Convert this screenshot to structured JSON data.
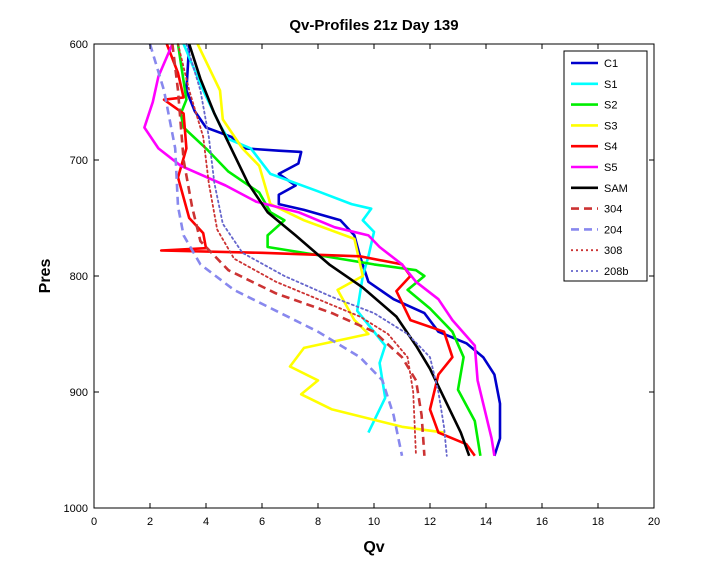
{
  "chart_data": {
    "type": "line",
    "title": "Qv-Profiles 21z Day 139",
    "xlabel": "Qv",
    "ylabel": "Pres",
    "xlim": [
      0,
      20
    ],
    "ylim": [
      600,
      1000
    ],
    "y_reversed": true,
    "xticks": [
      0,
      2,
      4,
      6,
      8,
      10,
      12,
      14,
      16,
      18,
      20
    ],
    "yticks": [
      600,
      700,
      800,
      900,
      1000
    ],
    "grid": false,
    "legend_position": "top-right",
    "series": [
      {
        "name": "C1",
        "color": "#0000cc",
        "dash": "solid",
        "points": [
          [
            3.4,
            600
          ],
          [
            3.3,
            640
          ],
          [
            3.6,
            658
          ],
          [
            4.0,
            672
          ],
          [
            4.9,
            680
          ],
          [
            5.4,
            690
          ],
          [
            6.6,
            692
          ],
          [
            7.4,
            693
          ],
          [
            7.3,
            703
          ],
          [
            6.6,
            712
          ],
          [
            7.2,
            722
          ],
          [
            6.6,
            730
          ],
          [
            6.6,
            738
          ],
          [
            7.5,
            743
          ],
          [
            8.8,
            752
          ],
          [
            9.3,
            765
          ],
          [
            9.5,
            783
          ],
          [
            9.8,
            805
          ],
          [
            10.7,
            820
          ],
          [
            11.8,
            832
          ],
          [
            12.3,
            848
          ],
          [
            13.3,
            858
          ],
          [
            13.9,
            870
          ],
          [
            14.3,
            885
          ],
          [
            14.5,
            910
          ],
          [
            14.5,
            940
          ],
          [
            14.3,
            955
          ]
        ]
      },
      {
        "name": "S1",
        "color": "#00ffff",
        "dash": "solid",
        "points": [
          [
            3.2,
            600
          ],
          [
            3.9,
            640
          ],
          [
            4.5,
            670
          ],
          [
            4.8,
            682
          ],
          [
            5.6,
            690
          ],
          [
            6.3,
            712
          ],
          [
            8.0,
            727
          ],
          [
            9.2,
            738
          ],
          [
            9.9,
            742
          ],
          [
            9.6,
            752
          ],
          [
            10.0,
            762
          ],
          [
            9.8,
            783
          ],
          [
            9.6,
            800
          ],
          [
            9.4,
            830
          ],
          [
            10.4,
            860
          ],
          [
            10.2,
            875
          ],
          [
            10.4,
            905
          ],
          [
            10.0,
            925
          ],
          [
            9.8,
            935
          ]
        ]
      },
      {
        "name": "S2",
        "color": "#00ee00",
        "dash": "solid",
        "points": [
          [
            3.0,
            600
          ],
          [
            3.3,
            648
          ],
          [
            3.1,
            660
          ],
          [
            3.2,
            672
          ],
          [
            4.0,
            690
          ],
          [
            4.8,
            710
          ],
          [
            5.9,
            728
          ],
          [
            6.3,
            745
          ],
          [
            6.8,
            752
          ],
          [
            6.2,
            765
          ],
          [
            6.2,
            775
          ],
          [
            8.0,
            782
          ],
          [
            10.0,
            790
          ],
          [
            11.5,
            795
          ],
          [
            11.8,
            800
          ],
          [
            11.2,
            812
          ],
          [
            12.0,
            828
          ],
          [
            12.8,
            848
          ],
          [
            13.2,
            870
          ],
          [
            13.0,
            898
          ],
          [
            13.6,
            925
          ],
          [
            13.8,
            955
          ]
        ]
      },
      {
        "name": "S3",
        "color": "#ffff00",
        "dash": "solid",
        "points": [
          [
            3.7,
            600
          ],
          [
            4.5,
            640
          ],
          [
            4.6,
            665
          ],
          [
            5.3,
            690
          ],
          [
            5.9,
            705
          ],
          [
            6.3,
            738
          ],
          [
            7.5,
            752
          ],
          [
            9.3,
            768
          ],
          [
            9.6,
            800
          ],
          [
            8.7,
            812
          ],
          [
            9.3,
            838
          ],
          [
            9.8,
            850
          ],
          [
            7.5,
            862
          ],
          [
            7.0,
            878
          ],
          [
            8.0,
            890
          ],
          [
            7.4,
            902
          ],
          [
            8.5,
            915
          ],
          [
            11.0,
            930
          ],
          [
            12.5,
            935
          ]
        ]
      },
      {
        "name": "S4",
        "color": "#ff0000",
        "dash": "solid",
        "points": [
          [
            2.6,
            600
          ],
          [
            3.0,
            625
          ],
          [
            3.2,
            646
          ],
          [
            2.5,
            648
          ],
          [
            3.2,
            660
          ],
          [
            3.3,
            690
          ],
          [
            3.0,
            715
          ],
          [
            3.4,
            750
          ],
          [
            3.9,
            763
          ],
          [
            4.0,
            776
          ],
          [
            2.4,
            778
          ],
          [
            6.0,
            780
          ],
          [
            9.5,
            783
          ],
          [
            11.0,
            790
          ],
          [
            11.3,
            800
          ],
          [
            10.8,
            813
          ],
          [
            11.3,
            838
          ],
          [
            12.5,
            848
          ],
          [
            12.8,
            870
          ],
          [
            12.3,
            885
          ],
          [
            12.0,
            915
          ],
          [
            12.3,
            935
          ],
          [
            13.3,
            945
          ],
          [
            13.6,
            955
          ]
        ]
      },
      {
        "name": "S5",
        "color": "#ff00ff",
        "dash": "solid",
        "points": [
          [
            2.8,
            600
          ],
          [
            2.3,
            628
          ],
          [
            2.1,
            650
          ],
          [
            1.8,
            672
          ],
          [
            2.3,
            690
          ],
          [
            3.1,
            705
          ],
          [
            4.7,
            722
          ],
          [
            5.8,
            736
          ],
          [
            7.3,
            745
          ],
          [
            8.6,
            758
          ],
          [
            9.8,
            765
          ],
          [
            10.2,
            775
          ],
          [
            11.0,
            790
          ],
          [
            11.5,
            805
          ],
          [
            12.3,
            820
          ],
          [
            12.8,
            838
          ],
          [
            13.6,
            860
          ],
          [
            13.7,
            890
          ],
          [
            13.9,
            910
          ],
          [
            14.2,
            940
          ],
          [
            14.3,
            955
          ]
        ]
      },
      {
        "name": "SAM",
        "color": "#000000",
        "dash": "solid",
        "points": [
          [
            3.4,
            600
          ],
          [
            3.8,
            630
          ],
          [
            4.3,
            660
          ],
          [
            4.9,
            690
          ],
          [
            5.5,
            720
          ],
          [
            6.2,
            745
          ],
          [
            7.2,
            765
          ],
          [
            8.4,
            790
          ],
          [
            9.6,
            810
          ],
          [
            10.8,
            835
          ],
          [
            11.5,
            860
          ],
          [
            12.0,
            880
          ],
          [
            12.6,
            910
          ],
          [
            13.1,
            935
          ],
          [
            13.4,
            955
          ]
        ]
      },
      {
        "name": "304",
        "color": "#cc3333",
        "dash": "dash",
        "points": [
          [
            2.8,
            600
          ],
          [
            3.0,
            640
          ],
          [
            3.2,
            700
          ],
          [
            3.5,
            740
          ],
          [
            3.8,
            770
          ],
          [
            4.8,
            795
          ],
          [
            6.5,
            815
          ],
          [
            8.5,
            832
          ],
          [
            10.0,
            848
          ],
          [
            11.0,
            870
          ],
          [
            11.5,
            890
          ],
          [
            11.7,
            920
          ],
          [
            11.8,
            955
          ]
        ]
      },
      {
        "name": "204",
        "color": "#8888ee",
        "dash": "dash",
        "points": [
          [
            2.0,
            600
          ],
          [
            2.5,
            640
          ],
          [
            2.9,
            690
          ],
          [
            3.0,
            740
          ],
          [
            3.2,
            765
          ],
          [
            3.8,
            790
          ],
          [
            5.0,
            812
          ],
          [
            6.5,
            830
          ],
          [
            8.0,
            848
          ],
          [
            9.5,
            870
          ],
          [
            10.3,
            890
          ],
          [
            10.7,
            920
          ],
          [
            11.0,
            955
          ]
        ]
      },
      {
        "name": "308",
        "color": "#cc3333",
        "dash": "dot",
        "points": [
          [
            3.0,
            600
          ],
          [
            3.4,
            640
          ],
          [
            3.9,
            680
          ],
          [
            4.1,
            720
          ],
          [
            4.4,
            760
          ],
          [
            5.0,
            785
          ],
          [
            6.5,
            805
          ],
          [
            8.0,
            820
          ],
          [
            9.5,
            835
          ],
          [
            10.5,
            850
          ],
          [
            11.2,
            870
          ],
          [
            11.4,
            900
          ],
          [
            11.5,
            955
          ]
        ]
      },
      {
        "name": "208b",
        "color": "#6666cc",
        "dash": "dot",
        "points": [
          [
            3.3,
            600
          ],
          [
            3.8,
            640
          ],
          [
            4.1,
            680
          ],
          [
            4.3,
            720
          ],
          [
            4.6,
            755
          ],
          [
            5.3,
            780
          ],
          [
            6.8,
            800
          ],
          [
            8.5,
            818
          ],
          [
            10.0,
            832
          ],
          [
            11.2,
            850
          ],
          [
            12.0,
            870
          ],
          [
            12.3,
            900
          ],
          [
            12.5,
            930
          ],
          [
            12.6,
            955
          ]
        ]
      }
    ]
  }
}
